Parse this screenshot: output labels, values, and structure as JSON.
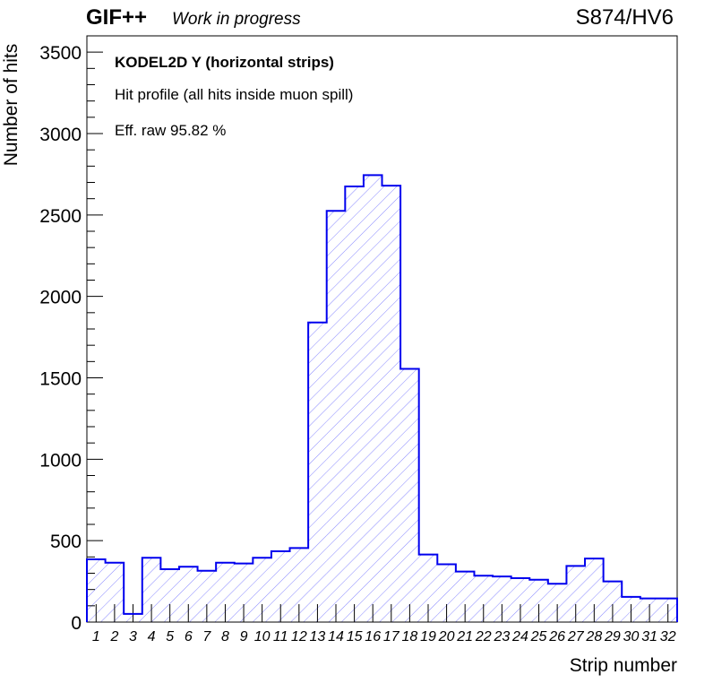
{
  "header": {
    "experiment": "GIF++",
    "status": "Work in progress",
    "run": "S874/HV6"
  },
  "annotations": {
    "title": "KODEL2D Y (horizontal strips)",
    "subtitle": "Hit profile (all hits inside muon spill)",
    "efficiency": "Eff. raw 95.82 %"
  },
  "colors": {
    "line": "#0000ee",
    "hatch": "#8888ff"
  },
  "chart_data": {
    "type": "bar",
    "style": "histogram-step-hatched",
    "xlabel": "Strip number",
    "ylabel": "Number of hits",
    "ylim": [
      0,
      3600
    ],
    "yticks": [
      0,
      500,
      1000,
      1500,
      2000,
      2500,
      3000,
      3500
    ],
    "categories": [
      "1",
      "2",
      "3",
      "4",
      "5",
      "6",
      "7",
      "8",
      "9",
      "10",
      "11",
      "12",
      "13",
      "14",
      "15",
      "16",
      "17",
      "18",
      "19",
      "20",
      "21",
      "22",
      "23",
      "24",
      "25",
      "26",
      "27",
      "28",
      "29",
      "30",
      "31",
      "32"
    ],
    "values": [
      385,
      365,
      50,
      395,
      325,
      340,
      315,
      365,
      360,
      395,
      435,
      455,
      1840,
      2525,
      2675,
      2745,
      2680,
      1555,
      415,
      355,
      310,
      285,
      280,
      270,
      260,
      235,
      345,
      390,
      250,
      155,
      145,
      145
    ],
    "grid": false,
    "legend": "none"
  }
}
